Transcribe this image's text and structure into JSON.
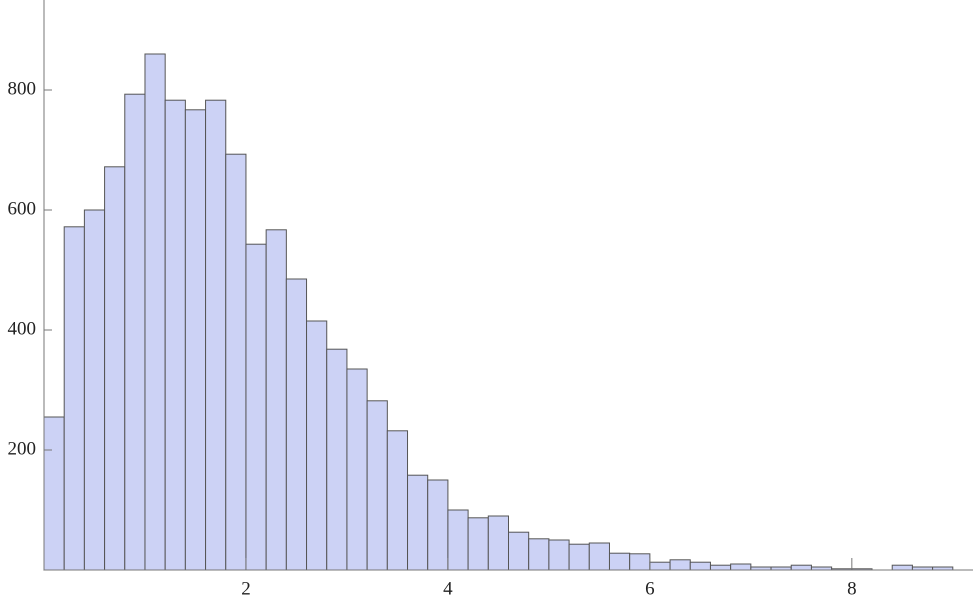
{
  "chart_data": {
    "type": "histogram",
    "bins": [
      0,
      0.2,
      0.4,
      0.6,
      0.8,
      1.0,
      1.2,
      1.4,
      1.6,
      1.8,
      2.0,
      2.2,
      2.4,
      2.6,
      2.8,
      3.0,
      3.2,
      3.4,
      3.6,
      3.8,
      4.0,
      4.2,
      4.4,
      4.6,
      4.8,
      5.0,
      5.2,
      5.4,
      5.6,
      5.8,
      6.0,
      6.2,
      6.4,
      6.6,
      6.8,
      7.0,
      7.2,
      7.4,
      7.6,
      7.8,
      8.0,
      8.2,
      8.4,
      8.6,
      8.8,
      9.0
    ],
    "values": [
      255,
      572,
      600,
      672,
      793,
      860,
      783,
      767,
      783,
      693,
      543,
      567,
      485,
      415,
      368,
      335,
      282,
      232,
      158,
      150,
      100,
      87,
      90,
      63,
      52,
      50,
      43,
      45,
      28,
      27,
      13,
      17,
      13,
      8,
      10,
      5,
      5,
      8,
      5,
      2,
      2,
      0,
      8,
      5,
      5
    ],
    "color": "#ccd2f5",
    "xlim": [
      0,
      9.2
    ],
    "xticks": [
      2,
      4,
      6,
      8
    ],
    "ylim": [
      0,
      950
    ],
    "yticks": [
      200,
      400,
      600,
      800
    ]
  }
}
